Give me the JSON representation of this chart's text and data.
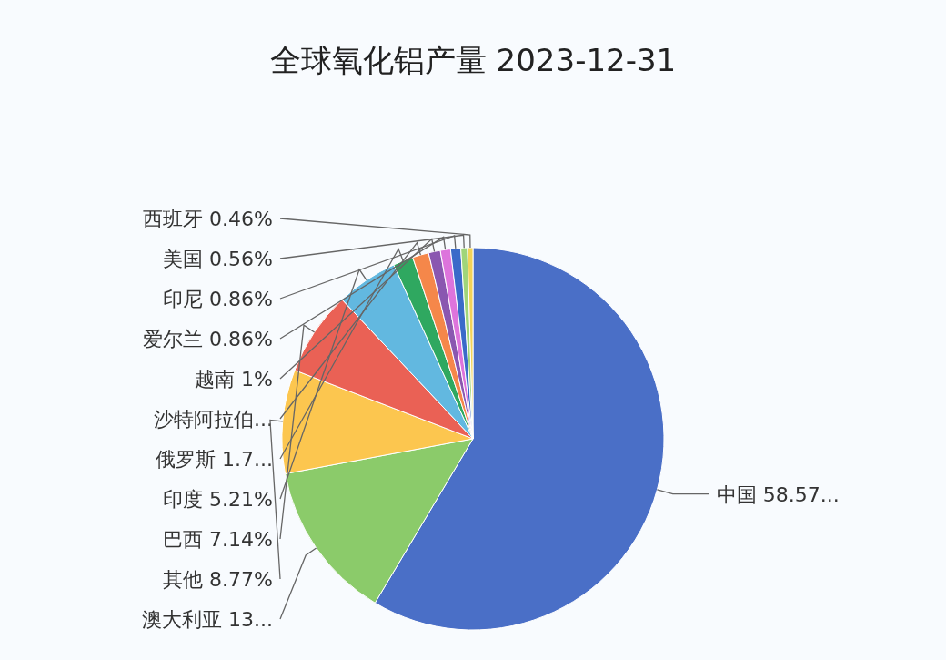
{
  "chart_data": {
    "type": "pie",
    "title": "全球氧化铝产量 2023-12-31",
    "categories": [
      "中国",
      "澳大利亚",
      "其他",
      "巴西",
      "印度",
      "俄罗斯",
      "沙特阿拉伯...",
      "越南",
      "爱尔兰",
      "印尼",
      "美国",
      "西班牙"
    ],
    "values": [
      58.57,
      13.5,
      8.77,
      7.14,
      5.21,
      1.7,
      1.37,
      1,
      0.86,
      0.86,
      0.56,
      0.46
    ],
    "value_labels": [
      "58.57...",
      "13...",
      "8.77%",
      "7.14%",
      "5.21%",
      "1.7...",
      null,
      "1%",
      "0.86%",
      "0.86%",
      "0.56%",
      "0.46%"
    ],
    "colors": [
      "#4a6fc7",
      "#8bcb6a",
      "#fcc64f",
      "#ea6155",
      "#62b8e0",
      "#2fa860",
      "#f5874a",
      "#8a57b0",
      "#dd74dc",
      "#3a6ac9",
      "#a0d57a",
      "#f2d35a"
    ]
  }
}
